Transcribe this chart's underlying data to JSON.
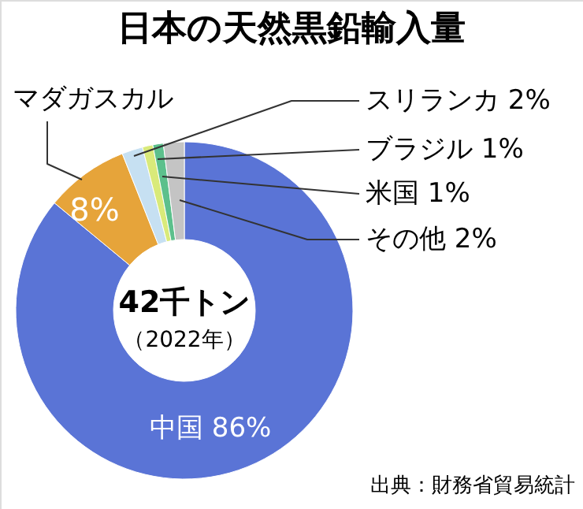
{
  "chart_data": {
    "type": "donut",
    "title": "日本の天然黒鉛輸入量",
    "categories": [
      "中国",
      "マダガスカル",
      "スリランカ",
      "ブラジル",
      "米国",
      "その他"
    ],
    "values": [
      86,
      8,
      2,
      1,
      1,
      2
    ],
    "value_labels": [
      "86%",
      "8%",
      "2%",
      "1%",
      "1%",
      "2%"
    ],
    "colors": [
      "#5a74d6",
      "#e6a43a",
      "#c6e0f2",
      "#d9ea7a",
      "#5cc08c",
      "#c4c4c4"
    ],
    "annotations": [
      "42千トン",
      "（2022年）",
      "出典：財務省貿易統計"
    ]
  }
}
